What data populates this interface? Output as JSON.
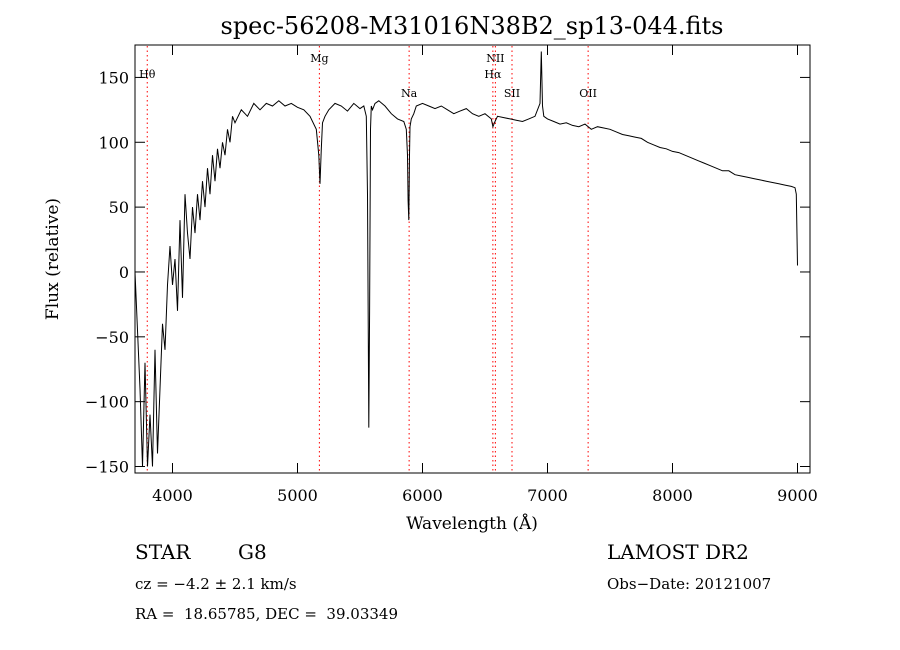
{
  "chart_data": {
    "type": "line",
    "title": "spec-56208-M31016N38B2_sp13-044.fits",
    "xlabel": "Wavelength (Å)",
    "ylabel": "Flux (relative)",
    "xlim": [
      3700,
      9100
    ],
    "ylim": [
      -155,
      175
    ],
    "x_ticks": [
      4000,
      5000,
      6000,
      7000,
      8000,
      9000
    ],
    "y_ticks": [
      -150,
      -100,
      -50,
      0,
      50,
      100,
      150
    ],
    "grid": false,
    "line_color": "#000000",
    "marker_color": "#ff0000",
    "spectral_lines": [
      {
        "label": "Hθ",
        "wavelength": 3798
      },
      {
        "label": "Mg",
        "wavelength": 5175
      },
      {
        "label": "Na",
        "wavelength": 5893
      },
      {
        "label": "NII",
        "wavelength": 6583
      },
      {
        "label": "Hα",
        "wavelength": 6563
      },
      {
        "label": "SII",
        "wavelength": 6716
      },
      {
        "label": "OII",
        "wavelength": 7325
      }
    ],
    "series": [
      {
        "x": [
          3700,
          3740,
          3760,
          3780,
          3800,
          3820,
          3840,
          3860,
          3880,
          3900,
          3920,
          3940,
          3960,
          3980,
          4000,
          4020,
          4040,
          4060,
          4080,
          4100,
          4120,
          4140,
          4160,
          4180,
          4200,
          4220,
          4240,
          4260,
          4280,
          4300,
          4320,
          4340,
          4360,
          4380,
          4400,
          4420,
          4440,
          4460,
          4480,
          4500,
          4550,
          4600,
          4650,
          4700,
          4750,
          4800,
          4850,
          4900,
          4950,
          5000,
          5050,
          5100,
          5150,
          5170,
          5180,
          5190,
          5200,
          5220,
          5250,
          5300,
          5350,
          5400,
          5450,
          5500,
          5530,
          5550,
          5560,
          5570,
          5577,
          5584,
          5590,
          5600,
          5620,
          5650,
          5700,
          5750,
          5800,
          5850,
          5870,
          5880,
          5885,
          5890,
          5893,
          5896,
          5900,
          5910,
          5930,
          5950,
          6000,
          6050,
          6100,
          6150,
          6200,
          6250,
          6300,
          6350,
          6400,
          6450,
          6500,
          6550,
          6563,
          6580,
          6600,
          6650,
          6700,
          6750,
          6800,
          6850,
          6900,
          6940,
          6950,
          6960,
          6970,
          7000,
          7050,
          7100,
          7150,
          7200,
          7250,
          7300,
          7350,
          7400,
          7450,
          7500,
          7550,
          7600,
          7650,
          7700,
          7750,
          7800,
          7850,
          7900,
          7950,
          8000,
          8050,
          8100,
          8150,
          8200,
          8250,
          8300,
          8350,
          8400,
          8450,
          8500,
          8550,
          8600,
          8650,
          8700,
          8750,
          8800,
          8850,
          8900,
          8950,
          8980,
          8990,
          9000
        ],
        "y": [
          0,
          -90,
          -150,
          -70,
          -150,
          -110,
          -150,
          -60,
          -140,
          -90,
          -40,
          -60,
          -10,
          20,
          -10,
          10,
          -30,
          40,
          -20,
          60,
          30,
          10,
          50,
          30,
          60,
          40,
          70,
          50,
          80,
          60,
          90,
          70,
          95,
          80,
          100,
          90,
          110,
          100,
          120,
          115,
          125,
          120,
          130,
          125,
          130,
          128,
          132,
          128,
          130,
          127,
          125,
          120,
          110,
          90,
          68,
          95,
          115,
          120,
          125,
          130,
          128,
          124,
          130,
          126,
          128,
          120,
          60,
          -120,
          -30,
          110,
          128,
          125,
          130,
          132,
          128,
          122,
          118,
          116,
          110,
          90,
          55,
          40,
          60,
          90,
          112,
          118,
          122,
          128,
          130,
          128,
          126,
          128,
          125,
          122,
          124,
          126,
          122,
          120,
          122,
          118,
          112,
          116,
          120,
          119,
          118,
          117,
          116,
          118,
          120,
          130,
          170,
          128,
          120,
          118,
          116,
          114,
          115,
          113,
          112,
          114,
          110,
          112,
          111,
          110,
          108,
          106,
          105,
          104,
          103,
          100,
          98,
          96,
          95,
          93,
          92,
          90,
          88,
          86,
          84,
          82,
          80,
          78,
          78,
          75,
          74,
          73,
          72,
          71,
          70,
          69,
          68,
          67,
          66,
          65,
          60,
          5
        ]
      }
    ]
  },
  "info": {
    "object_class": "STAR",
    "subclass": "G8",
    "survey": "LAMOST DR2",
    "redshift": "cz = −4.2 ± 2.1 km/s",
    "obs_date": "Obs−Date: 20121007",
    "coords": "RA =  18.65785, DEC =  39.03349"
  }
}
